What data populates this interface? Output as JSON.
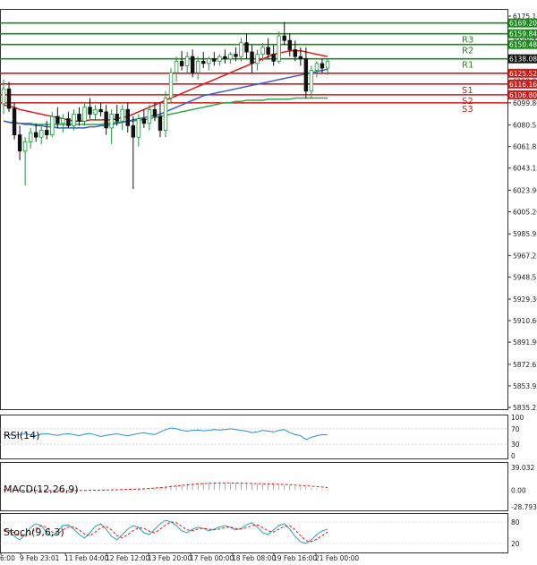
{
  "chart_data": {
    "type": "candlestick",
    "price_axis": {
      "min": 5835.25,
      "max": 6175.15,
      "ticks": [
        "6175.15",
        "6156.40",
        "6137.60",
        "6118.85",
        "6099.80",
        "6080.55",
        "6061.85",
        "6043.15",
        "6023.90",
        "6005.20",
        "5985.95",
        "5967.25",
        "5948.55",
        "5929.30",
        "5910.60",
        "5891.90",
        "5872.65",
        "5853.95",
        "5835.25"
      ]
    },
    "x_axis": {
      "labels": [
        "6:00",
        "9 Feb 23:01",
        "11 Feb 04:00",
        "12 Feb 12:00",
        "13 Feb 20:00",
        "17 Feb 00:00",
        "18 Feb 08:00",
        "19 Feb 16:00",
        "21 Feb 00:00"
      ]
    },
    "levels": [
      {
        "name": "R3",
        "value": 6159.84,
        "label": "6159.84",
        "color": "#1a8a1a"
      },
      {
        "name": "R2",
        "value": 6150.48,
        "label": "6150.48",
        "color": "#1a8a1a"
      },
      {
        "name": "R1",
        "value": 6138.08,
        "label": "",
        "color": "#1a8a1a"
      },
      {
        "name": "S1",
        "value": 6116.16,
        "label": "6116.16",
        "color": "#d11a1a"
      },
      {
        "name": "S2",
        "value": 6106.8,
        "label": "6106.80",
        "color": "#d11a1a"
      },
      {
        "name": "S3",
        "value": 6099.8,
        "label": "",
        "color": "#d11a1a"
      }
    ],
    "extra_lines": [
      {
        "value": 6169.2,
        "label": "6169.20",
        "color": "#1a8a1a"
      },
      {
        "value": 6125.52,
        "label": "6125.52",
        "color": "#d11a1a"
      }
    ],
    "current_price": "6138.08",
    "candles": [
      {
        "o": 6099,
        "h": 6120,
        "l": 6090,
        "c": 6112
      },
      {
        "o": 6112,
        "h": 6118,
        "l": 6092,
        "c": 6095
      },
      {
        "o": 6095,
        "h": 6100,
        "l": 6068,
        "c": 6072
      },
      {
        "o": 6072,
        "h": 6080,
        "l": 6050,
        "c": 6058
      },
      {
        "o": 6058,
        "h": 6070,
        "l": 6028,
        "c": 6066
      },
      {
        "o": 6066,
        "h": 6078,
        "l": 6060,
        "c": 6074
      },
      {
        "o": 6074,
        "h": 6082,
        "l": 6066,
        "c": 6070
      },
      {
        "o": 6070,
        "h": 6080,
        "l": 6064,
        "c": 6076
      },
      {
        "o": 6076,
        "h": 6084,
        "l": 6068,
        "c": 6072
      },
      {
        "o": 6072,
        "h": 6092,
        "l": 6070,
        "c": 6088
      },
      {
        "o": 6088,
        "h": 6096,
        "l": 6078,
        "c": 6082
      },
      {
        "o": 6082,
        "h": 6090,
        "l": 6074,
        "c": 6086
      },
      {
        "o": 6086,
        "h": 6092,
        "l": 6078,
        "c": 6080
      },
      {
        "o": 6080,
        "h": 6094,
        "l": 6076,
        "c": 6090
      },
      {
        "o": 6090,
        "h": 6096,
        "l": 6080,
        "c": 6084
      },
      {
        "o": 6084,
        "h": 6100,
        "l": 6080,
        "c": 6096
      },
      {
        "o": 6096,
        "h": 6104,
        "l": 6086,
        "c": 6090
      },
      {
        "o": 6090,
        "h": 6098,
        "l": 6084,
        "c": 6094
      },
      {
        "o": 6094,
        "h": 6100,
        "l": 6088,
        "c": 6092
      },
      {
        "o": 6092,
        "h": 6098,
        "l": 6072,
        "c": 6078
      },
      {
        "o": 6078,
        "h": 6094,
        "l": 6064,
        "c": 6090
      },
      {
        "o": 6090,
        "h": 6098,
        "l": 6080,
        "c": 6084
      },
      {
        "o": 6084,
        "h": 6098,
        "l": 6076,
        "c": 6094
      },
      {
        "o": 6094,
        "h": 6100,
        "l": 6074,
        "c": 6080
      },
      {
        "o": 6080,
        "h": 6088,
        "l": 6025,
        "c": 6070
      },
      {
        "o": 6070,
        "h": 6090,
        "l": 6062,
        "c": 6086
      },
      {
        "o": 6086,
        "h": 6094,
        "l": 6078,
        "c": 6082
      },
      {
        "o": 6082,
        "h": 6098,
        "l": 6076,
        "c": 6094
      },
      {
        "o": 6094,
        "h": 6100,
        "l": 6084,
        "c": 6088
      },
      {
        "o": 6088,
        "h": 6100,
        "l": 6070,
        "c": 6076
      },
      {
        "o": 6076,
        "h": 6110,
        "l": 6070,
        "c": 6104
      },
      {
        "o": 6104,
        "h": 6130,
        "l": 6100,
        "c": 6126
      },
      {
        "o": 6126,
        "h": 6140,
        "l": 6118,
        "c": 6136
      },
      {
        "o": 6136,
        "h": 6145,
        "l": 6128,
        "c": 6132
      },
      {
        "o": 6132,
        "h": 6144,
        "l": 6126,
        "c": 6140
      },
      {
        "o": 6140,
        "h": 6146,
        "l": 6122,
        "c": 6126
      },
      {
        "o": 6126,
        "h": 6140,
        "l": 6120,
        "c": 6136
      },
      {
        "o": 6136,
        "h": 6144,
        "l": 6130,
        "c": 6134
      },
      {
        "o": 6134,
        "h": 6140,
        "l": 6128,
        "c": 6138
      },
      {
        "o": 6138,
        "h": 6144,
        "l": 6132,
        "c": 6136
      },
      {
        "o": 6136,
        "h": 6142,
        "l": 6132,
        "c": 6140
      },
      {
        "o": 6140,
        "h": 6146,
        "l": 6134,
        "c": 6138
      },
      {
        "o": 6138,
        "h": 6144,
        "l": 6134,
        "c": 6142
      },
      {
        "o": 6142,
        "h": 6148,
        "l": 6136,
        "c": 6140
      },
      {
        "o": 6140,
        "h": 6156,
        "l": 6136,
        "c": 6152
      },
      {
        "o": 6152,
        "h": 6160,
        "l": 6138,
        "c": 6144
      },
      {
        "o": 6144,
        "h": 6150,
        "l": 6126,
        "c": 6134
      },
      {
        "o": 6134,
        "h": 6146,
        "l": 6128,
        "c": 6142
      },
      {
        "o": 6142,
        "h": 6152,
        "l": 6136,
        "c": 6148
      },
      {
        "o": 6148,
        "h": 6156,
        "l": 6138,
        "c": 6142
      },
      {
        "o": 6142,
        "h": 6150,
        "l": 6132,
        "c": 6136
      },
      {
        "o": 6136,
        "h": 6162,
        "l": 6134,
        "c": 6158
      },
      {
        "o": 6158,
        "h": 6170,
        "l": 6150,
        "c": 6154
      },
      {
        "o": 6154,
        "h": 6160,
        "l": 6140,
        "c": 6146
      },
      {
        "o": 6146,
        "h": 6154,
        "l": 6136,
        "c": 6140
      },
      {
        "o": 6140,
        "h": 6148,
        "l": 6132,
        "c": 6138
      },
      {
        "o": 6138,
        "h": 6148,
        "l": 6104,
        "c": 6110
      },
      {
        "o": 6110,
        "h": 6132,
        "l": 6104,
        "c": 6128
      },
      {
        "o": 6128,
        "h": 6136,
        "l": 6122,
        "c": 6134
      },
      {
        "o": 6134,
        "h": 6138,
        "l": 6126,
        "c": 6130
      },
      {
        "o": 6130,
        "h": 6138,
        "l": 6124,
        "c": 6136
      }
    ],
    "ma_red": [
      6098,
      6097,
      6096,
      6094,
      6093,
      6092,
      6091,
      6090,
      6089,
      6088,
      6087,
      6086,
      6085,
      6084,
      6084,
      6084,
      6085,
      6085,
      6085,
      6085,
      6085,
      6086,
      6087,
      6088,
      6090,
      6092,
      6094,
      6096,
      6098,
      6100,
      6102,
      6104,
      6106,
      6108,
      6110,
      6112,
      6114,
      6116,
      6118,
      6120,
      6122,
      6124,
      6126,
      6128,
      6130,
      6132,
      6134,
      6136,
      6138,
      6140,
      6142,
      6143,
      6144,
      6145,
      6145,
      6145,
      6144,
      6143,
      6142,
      6141,
      6140
    ],
    "ma_blue": [
      6084,
      6083,
      6082,
      6082,
      6081,
      6081,
      6080,
      6080,
      6079,
      6079,
      6078,
      6078,
      6078,
      6078,
      6078,
      6078,
      6079,
      6079,
      6080,
      6080,
      6081,
      6082,
      6083,
      6084,
      6085,
      6086,
      6087,
      6088,
      6089,
      6090,
      6092,
      6094,
      6096,
      6098,
      6100,
      6102,
      6104,
      6106,
      6107,
      6108,
      6109,
      6110,
      6111,
      6112,
      6113,
      6114,
      6115,
      6116,
      6117,
      6118,
      6119,
      6120,
      6121,
      6122,
      6123,
      6124,
      6125,
      6126,
      6127,
      6128,
      6129
    ],
    "ma_green": [
      6084,
      6083,
      6083,
      6082,
      6082,
      6082,
      6081,
      6081,
      6081,
      6081,
      6081,
      6081,
      6081,
      6081,
      6081,
      6081,
      6081,
      6081,
      6081,
      6082,
      6082,
      6083,
      6083,
      6084,
      6084,
      6085,
      6085,
      6086,
      6087,
      6088,
      6089,
      6090,
      6091,
      6092,
      6093,
      6094,
      6095,
      6096,
      6097,
      6098,
      6099,
      6100,
      6100,
      6101,
      6101,
      6102,
      6102,
      6102,
      6102,
      6103,
      6103,
      6103,
      6103,
      6103,
      6104,
      6104,
      6104,
      6104,
      6104,
      6104,
      6104
    ],
    "rsi": {
      "title": "RSI(14)",
      "ticks": [
        "100",
        "70",
        "30",
        "0"
      ],
      "range": [
        0,
        100
      ],
      "values": [
        55,
        54,
        53,
        55,
        57,
        54,
        52,
        56,
        58,
        55,
        53,
        56,
        57,
        55,
        52,
        56,
        58,
        54,
        50,
        53,
        55,
        57,
        54,
        52,
        55,
        58,
        60,
        57,
        55,
        62,
        68,
        72,
        70,
        66,
        64,
        66,
        67,
        65,
        66,
        68,
        67,
        68,
        70,
        68,
        66,
        64,
        60,
        62,
        66,
        64,
        62,
        66,
        68,
        60,
        55,
        52,
        42,
        48,
        52,
        55,
        54
      ]
    },
    "macd": {
      "title": "MACD(12,26,9)",
      "ticks": [
        "39.032",
        "0.00",
        "-28.793"
      ],
      "range": [
        -28.793,
        39.032
      ],
      "hist": [
        0.6,
        0.4,
        0.0,
        -0.3,
        -0.6,
        -0.8,
        -1,
        -1.1,
        -1.2,
        -1.2,
        -1.2,
        -1.1,
        -1.0,
        -0.9,
        -0.7,
        -0.5,
        -0.3,
        -0.1,
        0.1,
        0.3,
        0.6,
        0.9,
        1.2,
        1.5,
        1.8,
        2.2,
        2.8,
        3.4,
        4.2,
        5.2,
        6.4,
        7.8,
        9.2,
        10.4,
        11.4,
        12.2,
        12.8,
        13.2,
        13.4,
        13.4,
        13.2,
        13.0,
        12.6,
        12.2,
        11.8,
        11.4,
        11.0,
        10.6,
        10.2,
        9.8,
        9.4,
        9.0,
        8.4,
        7.8,
        7.0,
        6.0,
        5.0,
        4.0,
        3.2,
        2.4,
        1.6
      ],
      "signal": [
        0.5,
        0.4,
        0.2,
        0.0,
        -0.2,
        -0.4,
        -0.6,
        -0.7,
        -0.8,
        -0.9,
        -1.0,
        -1.0,
        -1.0,
        -0.9,
        -0.8,
        -0.7,
        -0.5,
        -0.3,
        -0.1,
        0.1,
        0.3,
        0.5,
        0.8,
        1.1,
        1.4,
        1.8,
        2.2,
        2.8,
        3.4,
        4.2,
        5.0,
        6.0,
        7.0,
        8.0,
        9.0,
        9.8,
        10.6,
        11.2,
        11.6,
        12.0,
        12.2,
        12.3,
        12.3,
        12.2,
        12.0,
        11.8,
        11.5,
        11.2,
        10.9,
        10.6,
        10.3,
        10.0,
        9.6,
        9.2,
        8.7,
        8.1,
        7.5,
        6.8,
        6.0,
        5.2,
        4.4
      ]
    },
    "stoch": {
      "title": "Stoch(9,6,3)",
      "ticks": [
        "80",
        "20"
      ],
      "range": [
        0,
        100
      ],
      "k": [
        60,
        55,
        40,
        30,
        45,
        65,
        75,
        70,
        50,
        40,
        55,
        70,
        72,
        60,
        45,
        35,
        50,
        68,
        75,
        60,
        40,
        30,
        45,
        60,
        70,
        65,
        50,
        45,
        60,
        75,
        85,
        80,
        70,
        55,
        50,
        60,
        65,
        62,
        55,
        60,
        66,
        70,
        65,
        58,
        62,
        72,
        78,
        66,
        50,
        45,
        58,
        70,
        75,
        60,
        40,
        25,
        20,
        30,
        45,
        55,
        60
      ],
      "d": [
        55,
        56,
        50,
        42,
        40,
        48,
        62,
        70,
        65,
        52,
        48,
        58,
        66,
        66,
        58,
        46,
        42,
        52,
        64,
        68,
        58,
        42,
        36,
        45,
        56,
        64,
        62,
        54,
        50,
        60,
        72,
        80,
        78,
        68,
        58,
        56,
        60,
        63,
        60,
        58,
        60,
        65,
        66,
        62,
        60,
        64,
        70,
        72,
        64,
        55,
        52,
        60,
        68,
        70,
        58,
        42,
        28,
        25,
        32,
        42,
        52
      ]
    }
  }
}
